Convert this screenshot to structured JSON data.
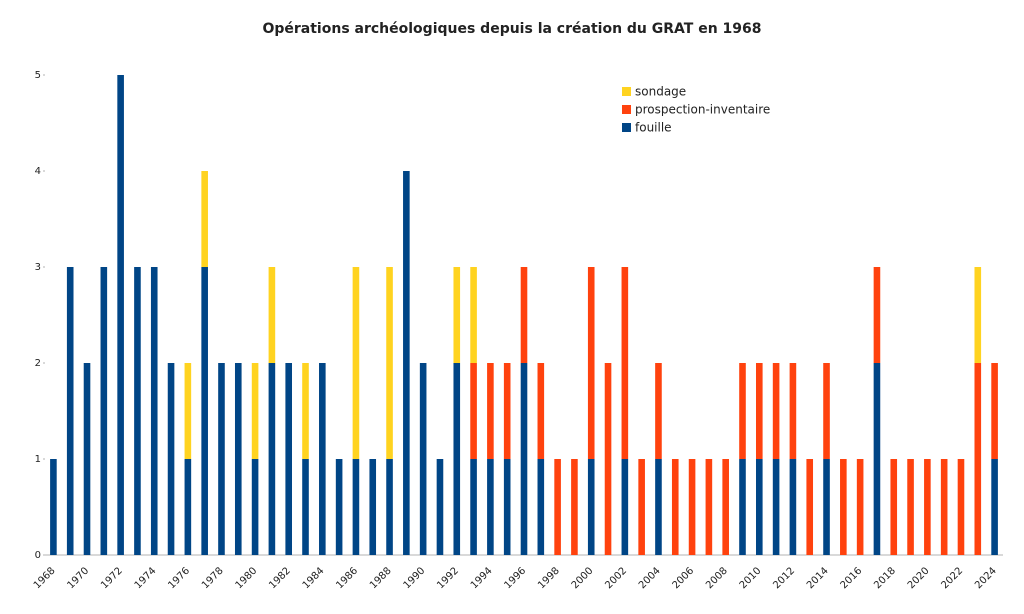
{
  "chart_data": {
    "type": "stacked_bar",
    "title": "Opérations archéologiques depuis la création du GRAT en 1968",
    "categories": [
      "1968",
      null,
      "1970",
      null,
      "1972",
      null,
      "1974",
      null,
      "1976",
      null,
      "1978",
      null,
      "1980",
      null,
      "1982",
      null,
      "1984",
      null,
      "1986",
      null,
      "1988",
      null,
      "1990",
      null,
      "1992",
      null,
      "1994",
      null,
      "1996",
      null,
      "1998",
      null,
      "2000",
      null,
      "2002",
      null,
      "2004",
      null,
      "2006",
      null,
      "2008",
      null,
      "2010",
      null,
      "2012",
      null,
      "2014",
      null,
      "2016",
      null,
      "2018",
      null,
      "2020",
      null,
      "2022",
      null,
      "2024"
    ],
    "series": [
      {
        "name": "fouille",
        "color": "#004586",
        "values": [
          1,
          3,
          2,
          3,
          5,
          3,
          3,
          2,
          1,
          3,
          2,
          2,
          1,
          2,
          2,
          1,
          2,
          1,
          1,
          1,
          1,
          4,
          2,
          1,
          2,
          1,
          1,
          1,
          2,
          1,
          0,
          0,
          1,
          0,
          1,
          0,
          1,
          0,
          0,
          0,
          0,
          1,
          1,
          1,
          1,
          0,
          1,
          0,
          0,
          2,
          0,
          0,
          0,
          0,
          0,
          0,
          1
        ]
      },
      {
        "name": "prospection-inventaire",
        "color": "#ff420e",
        "values": [
          0,
          0,
          0,
          0,
          0,
          0,
          0,
          0,
          0,
          0,
          0,
          0,
          0,
          0,
          0,
          0,
          0,
          0,
          0,
          0,
          0,
          0,
          0,
          0,
          0,
          1,
          1,
          1,
          1,
          1,
          1,
          1,
          2,
          2,
          2,
          1,
          1,
          1,
          1,
          1,
          1,
          1,
          1,
          1,
          1,
          1,
          1,
          1,
          1,
          1,
          1,
          1,
          1,
          1,
          1,
          2,
          1
        ]
      },
      {
        "name": "sondage",
        "color": "#ffd320",
        "values": [
          0,
          0,
          0,
          0,
          0,
          0,
          0,
          0,
          1,
          1,
          0,
          0,
          1,
          1,
          0,
          1,
          0,
          0,
          2,
          0,
          2,
          0,
          0,
          0,
          1,
          1,
          0,
          0,
          0,
          0,
          0,
          0,
          0,
          0,
          0,
          0,
          0,
          0,
          0,
          0,
          0,
          0,
          0,
          0,
          0,
          0,
          0,
          0,
          0,
          0,
          0,
          0,
          0,
          0,
          0,
          1,
          0
        ]
      }
    ],
    "ylim": [
      0,
      5
    ],
    "yticks": [
      0,
      1,
      2,
      3,
      4,
      5
    ],
    "grid": false,
    "legend": "top-right"
  }
}
